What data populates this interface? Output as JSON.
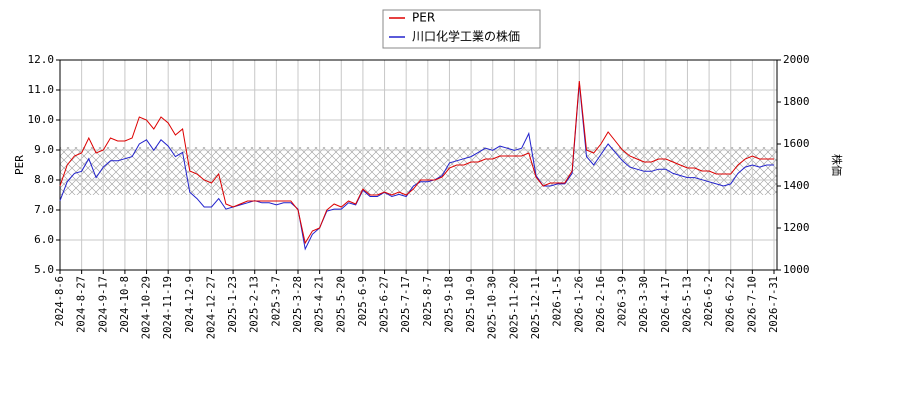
{
  "chart_data": {
    "type": "line",
    "y_label": "PER",
    "y2_label": "株価",
    "categories": [
      "2024-8-6",
      null,
      null,
      "2024-8-27",
      null,
      null,
      "2024-9-17",
      null,
      null,
      "2024-10-8",
      null,
      null,
      "2024-10-29",
      null,
      null,
      "2024-11-19",
      null,
      null,
      "2024-12-9",
      null,
      null,
      "2024-12-27",
      null,
      null,
      "2025-1-23",
      null,
      null,
      "2025-2-13",
      null,
      null,
      "2025-3-7",
      null,
      null,
      "2025-3-28",
      null,
      null,
      "2025-4-21",
      null,
      null,
      "2025-5-20",
      null,
      null,
      "2025-6-9",
      null,
      null,
      "2025-6-27",
      null,
      null,
      "2025-7-17",
      null,
      null,
      "2025-8-7",
      null,
      null,
      "2025-9-18",
      null,
      null,
      "2025-10-9",
      null,
      null,
      "2025-10-30",
      null,
      null,
      "2025-11-20",
      null,
      null,
      "2025-12-11",
      null,
      null,
      "2026-1-5",
      null,
      null,
      "2026-1-26",
      null,
      null,
      "2026-2-16",
      null,
      null,
      "2026-3-9",
      null,
      null,
      "2026-3-30",
      null,
      null,
      "2026-4-17",
      null,
      null,
      "2026-5-13",
      null,
      null,
      "2026-6-2",
      null,
      null,
      "2026-6-22",
      null,
      null,
      "2026-7-10",
      null,
      null,
      "2026-7-31"
    ],
    "series": [
      {
        "name": "PER",
        "color": "#dd0000",
        "axis": "y",
        "values": [
          7.8,
          8.5,
          8.8,
          8.9,
          9.4,
          8.9,
          9.0,
          9.4,
          9.3,
          9.3,
          9.4,
          10.1,
          10.0,
          9.7,
          10.1,
          9.9,
          9.5,
          9.7,
          8.3,
          8.2,
          8.0,
          7.9,
          8.2,
          7.2,
          7.1,
          7.2,
          7.3,
          7.3,
          7.3,
          7.3,
          7.3,
          7.3,
          7.3,
          7.0,
          5.9,
          6.3,
          6.4,
          7.0,
          7.2,
          7.1,
          7.3,
          7.2,
          7.7,
          7.5,
          7.5,
          7.6,
          7.5,
          7.6,
          7.5,
          7.7,
          8.0,
          8.0,
          8.0,
          8.1,
          8.4,
          8.5,
          8.5,
          8.6,
          8.6,
          8.7,
          8.7,
          8.8,
          8.8,
          8.8,
          8.8,
          8.9,
          8.1,
          7.8,
          7.9,
          7.9,
          7.9,
          8.3,
          11.3,
          9.0,
          8.9,
          9.2,
          9.6,
          9.3,
          9.0,
          8.8,
          8.7,
          8.6,
          8.6,
          8.7,
          8.7,
          8.6,
          8.5,
          8.4,
          8.4,
          8.3,
          8.3,
          8.2,
          8.2,
          8.2,
          8.5,
          8.7,
          8.8,
          8.7,
          8.7,
          8.7
        ]
      },
      {
        "name": "川口化学工業の株価",
        "color": "#2222cc",
        "axis": "y2",
        "values": [
          1330,
          1420,
          1460,
          1470,
          1530,
          1440,
          1490,
          1520,
          1520,
          1530,
          1540,
          1600,
          1620,
          1570,
          1620,
          1590,
          1540,
          1560,
          1370,
          1340,
          1300,
          1300,
          1340,
          1290,
          1300,
          1310,
          1320,
          1330,
          1320,
          1320,
          1310,
          1320,
          1320,
          1290,
          1100,
          1170,
          1200,
          1280,
          1290,
          1290,
          1320,
          1310,
          1380,
          1350,
          1350,
          1370,
          1350,
          1360,
          1350,
          1400,
          1420,
          1420,
          1430,
          1450,
          1510,
          1520,
          1530,
          1540,
          1560,
          1580,
          1570,
          1590,
          1580,
          1570,
          1580,
          1650,
          1450,
          1400,
          1400,
          1410,
          1410,
          1460,
          1890,
          1540,
          1500,
          1550,
          1600,
          1560,
          1520,
          1490,
          1480,
          1470,
          1470,
          1480,
          1480,
          1460,
          1450,
          1440,
          1440,
          1430,
          1420,
          1410,
          1400,
          1410,
          1460,
          1490,
          1500,
          1490,
          1500,
          1500
        ]
      }
    ],
    "ylim": [
      5,
      12
    ],
    "yticks": [
      {
        "value": 5,
        "label": "5.0"
      },
      {
        "value": 6,
        "label": "6.0"
      },
      {
        "value": 7,
        "label": "7.0"
      },
      {
        "value": 8,
        "label": "8.0"
      },
      {
        "value": 9,
        "label": "9.0"
      },
      {
        "value": 10,
        "label": "10.0"
      },
      {
        "value": 11,
        "label": "11.0"
      },
      {
        "value": 12,
        "label": "12.0"
      }
    ],
    "y2lim": [
      1000,
      2000
    ],
    "y2ticks": [
      1000,
      1200,
      1400,
      1600,
      1800,
      2000
    ],
    "band_ylim": [
      7.5,
      9.1
    ],
    "grid": true,
    "legend": "top"
  }
}
